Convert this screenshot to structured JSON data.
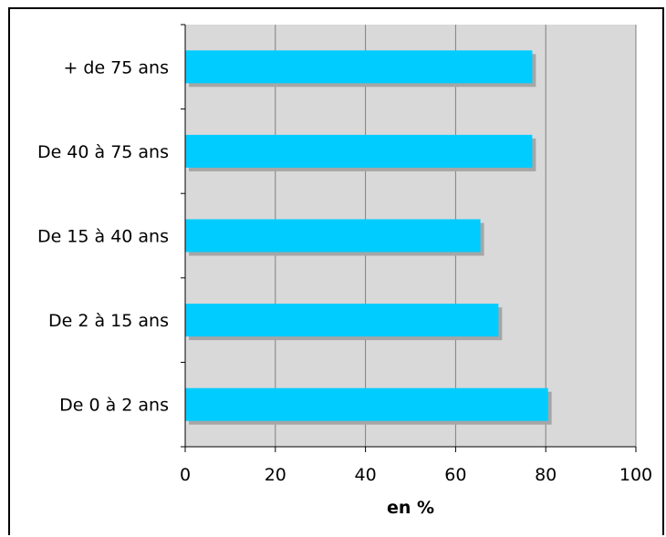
{
  "chart_data": {
    "type": "bar",
    "orientation": "horizontal",
    "categories": [
      "+ de 75 ans",
      "De 40 à 75 ans",
      "De 15 à 40 ans",
      "De 2 à 15 ans",
      "De 0 à 2 ans"
    ],
    "values": [
      77,
      77,
      65.5,
      69.5,
      80.5
    ],
    "xlabel": "en %",
    "xlim": [
      0,
      100
    ],
    "xticks": [
      "0",
      "20",
      "40",
      "60",
      "80",
      "100"
    ],
    "grid": "vertical",
    "colors": {
      "bar": "#00CCFF",
      "bar_shadow": "#A6A6A6",
      "plot_background": "#D9D9D9",
      "gridline": "#808080"
    }
  }
}
